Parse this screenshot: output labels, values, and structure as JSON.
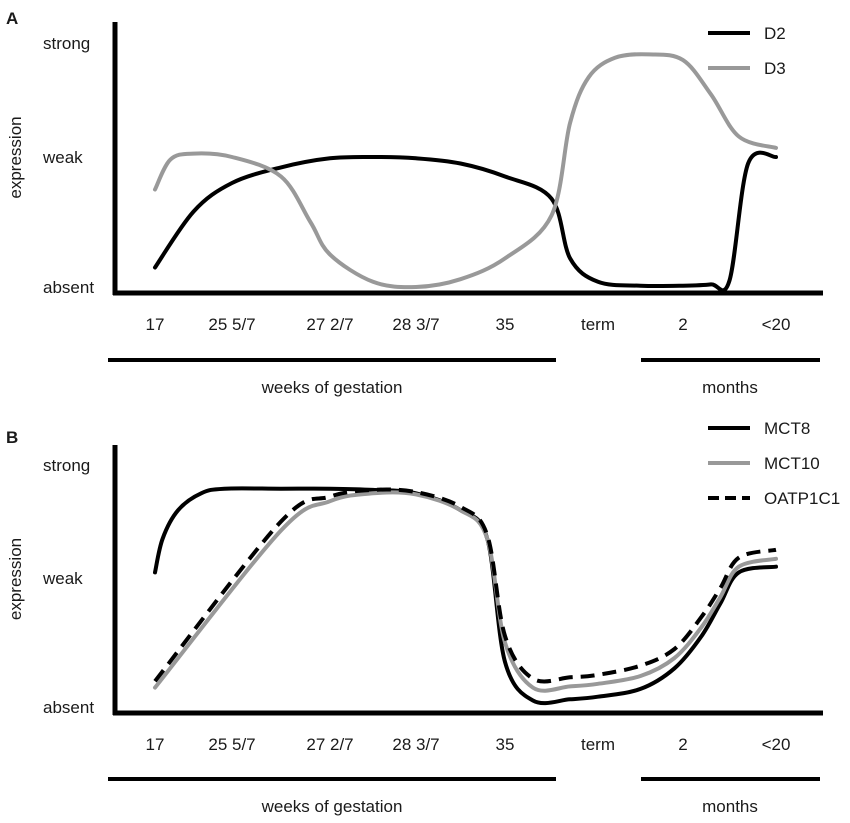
{
  "chart_data": [
    {
      "type": "line",
      "panel_label": "A",
      "ylabel": "expression",
      "y_levels": [
        "absent",
        "weak",
        "strong"
      ],
      "ylim": [
        0,
        2
      ],
      "categories": [
        "17",
        "25 5/7",
        "27 2/7",
        "28 3/7",
        "35",
        "term",
        "2",
        "<20"
      ],
      "period_labels": [
        "weeks of gestation",
        "months"
      ],
      "series": [
        {
          "name": "D2",
          "color": "#000000",
          "dash": "solid",
          "x": [
            0,
            0.5,
            1,
            1.5,
            2,
            2.5,
            3,
            3.5,
            4,
            4.5,
            4.7,
            5,
            5.5,
            6,
            6.3,
            6.5,
            6.7,
            7
          ],
          "values": [
            0.15,
            0.58,
            0.8,
            0.92,
            0.99,
            1.0,
            0.99,
            0.95,
            0.85,
            0.68,
            0.22,
            0.04,
            0.01,
            0.01,
            0.02,
            0.05,
            0.95,
            1.0
          ]
        },
        {
          "name": "D3",
          "color": "#999999",
          "dash": "solid",
          "x": [
            0,
            0.2,
            0.5,
            1,
            1.5,
            1.8,
            2,
            2.5,
            3,
            3.5,
            4,
            4.5,
            4.7,
            4.9,
            5.2,
            5.6,
            6.0,
            6.3,
            6.6,
            7
          ],
          "values": [
            0.75,
            0.98,
            1.03,
            1.0,
            0.85,
            0.5,
            0.25,
            0.04,
            0.0,
            0.06,
            0.22,
            0.55,
            1.3,
            1.7,
            1.87,
            1.9,
            1.85,
            1.55,
            1.18,
            1.08
          ]
        }
      ]
    },
    {
      "type": "line",
      "panel_label": "B",
      "ylabel": "expression",
      "y_levels": [
        "absent",
        "weak",
        "strong"
      ],
      "ylim": [
        0,
        2
      ],
      "categories": [
        "17",
        "25 5/7",
        "27 2/7",
        "28 3/7",
        "35",
        "term",
        "2",
        "<20"
      ],
      "period_labels": [
        "weeks of gestation",
        "months"
      ],
      "series": [
        {
          "name": "MCT8",
          "color": "#000000",
          "dash": "solid",
          "x": [
            0,
            0.1,
            0.3,
            0.6,
            0.9,
            1.5,
            2,
            2.5,
            3,
            3.5,
            3.8,
            4,
            4.3,
            4.7,
            5,
            5.5,
            5.9,
            6.2,
            6.4,
            6.6,
            7
          ],
          "values": [
            1.05,
            1.35,
            1.6,
            1.75,
            1.79,
            1.79,
            1.79,
            1.78,
            1.75,
            1.6,
            1.35,
            0.35,
            0.05,
            0.06,
            0.08,
            0.14,
            0.3,
            0.55,
            0.8,
            1.05,
            1.1
          ]
        },
        {
          "name": "MCT10",
          "color": "#999999",
          "dash": "solid",
          "x": [
            0,
            1.5,
            2,
            2.5,
            3,
            3.5,
            3.8,
            4,
            4.3,
            4.7,
            5,
            5.5,
            5.9,
            6.2,
            6.4,
            6.6,
            7
          ],
          "values": [
            0.15,
            1.42,
            1.68,
            1.75,
            1.74,
            1.6,
            1.35,
            0.5,
            0.15,
            0.16,
            0.18,
            0.24,
            0.38,
            0.62,
            0.85,
            1.1,
            1.17
          ]
        },
        {
          "name": "OATP1C1",
          "color": "#000000",
          "dash": "dashed",
          "x": [
            0,
            1.5,
            2,
            2.5,
            3,
            3.5,
            3.8,
            4,
            4.3,
            4.7,
            5,
            5.5,
            5.9,
            6.2,
            6.4,
            6.6,
            7
          ],
          "values": [
            0.2,
            1.5,
            1.72,
            1.78,
            1.76,
            1.63,
            1.38,
            0.55,
            0.22,
            0.23,
            0.25,
            0.32,
            0.45,
            0.7,
            0.92,
            1.18,
            1.25
          ]
        }
      ]
    }
  ]
}
